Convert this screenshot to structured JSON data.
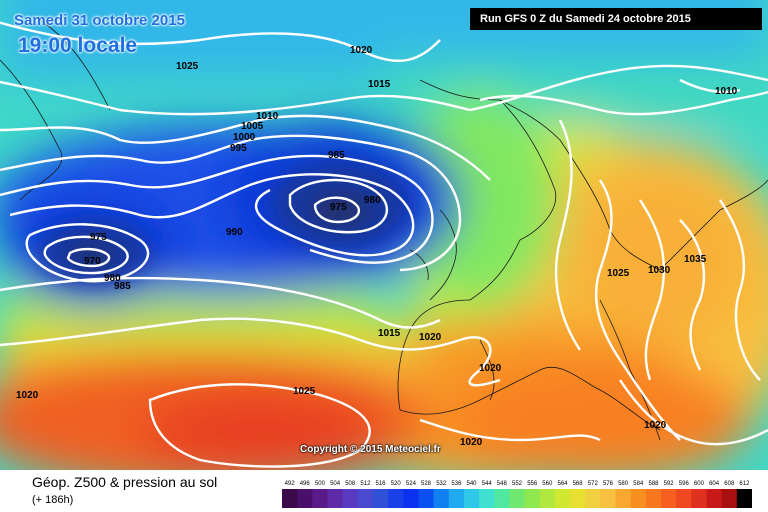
{
  "header": {
    "date": "Samedi 31 octobre 2015",
    "time": "19:00 locale",
    "run": "Run GFS 0 Z du Samedi 24 octobre 2015"
  },
  "copyright": "Copyright © 2015 Meteociel.fr",
  "footer": {
    "title": "Géop. Z500 & pression au sol",
    "subtitle": "(+ 186h)"
  },
  "legend": {
    "values": [
      "492",
      "496",
      "500",
      "504",
      "508",
      "512",
      "516",
      "520",
      "524",
      "528",
      "532",
      "536",
      "540",
      "544",
      "548",
      "552",
      "556",
      "560",
      "564",
      "568",
      "572",
      "576",
      "580",
      "584",
      "588",
      "592",
      "596",
      "600",
      "604",
      "608",
      "612"
    ],
    "colors": [
      "#3a0a4a",
      "#4a0f6a",
      "#5a1a8a",
      "#5e2aa8",
      "#5a3ac0",
      "#4a4ad0",
      "#3050d8",
      "#1a40e8",
      "#0a30f0",
      "#0a50f0",
      "#1080f0",
      "#20a8f0",
      "#30c8e8",
      "#40e0d0",
      "#50e8a0",
      "#70e870",
      "#90e850",
      "#b0e840",
      "#d0e830",
      "#e8e030",
      "#f0d040",
      "#f8c040",
      "#f8a830",
      "#f89020",
      "#f87820",
      "#f86020",
      "#f04820",
      "#e03020",
      "#c81818",
      "#a81010",
      "#000000"
    ]
  },
  "isobars": [
    {
      "value": "1025",
      "id": "p1"
    },
    {
      "value": "1020",
      "id": "p2"
    },
    {
      "value": "1015",
      "id": "p3"
    },
    {
      "value": "1010",
      "id": "p4"
    },
    {
      "value": "1005",
      "id": "p5"
    },
    {
      "value": "1000",
      "id": "p6"
    },
    {
      "value": "995",
      "id": "p7"
    },
    {
      "value": "985",
      "id": "p8"
    },
    {
      "value": "980",
      "id": "p9"
    },
    {
      "value": "975",
      "id": "p10"
    },
    {
      "value": "990",
      "id": "p11"
    },
    {
      "value": "975",
      "id": "p12"
    },
    {
      "value": "970",
      "id": "p13"
    },
    {
      "value": "980",
      "id": "p14"
    },
    {
      "value": "985",
      "id": "p15"
    },
    {
      "value": "1010",
      "id": "p16"
    },
    {
      "value": "1025",
      "id": "p17"
    },
    {
      "value": "1030",
      "id": "p18"
    },
    {
      "value": "1035",
      "id": "p19"
    },
    {
      "value": "1015",
      "id": "p20"
    },
    {
      "value": "1020",
      "id": "p21"
    },
    {
      "value": "1020",
      "id": "p22"
    },
    {
      "value": "1025",
      "id": "p23"
    },
    {
      "value": "1020",
      "id": "p24"
    },
    {
      "value": "1020",
      "id": "p25"
    },
    {
      "value": "1020",
      "id": "p26"
    }
  ]
}
